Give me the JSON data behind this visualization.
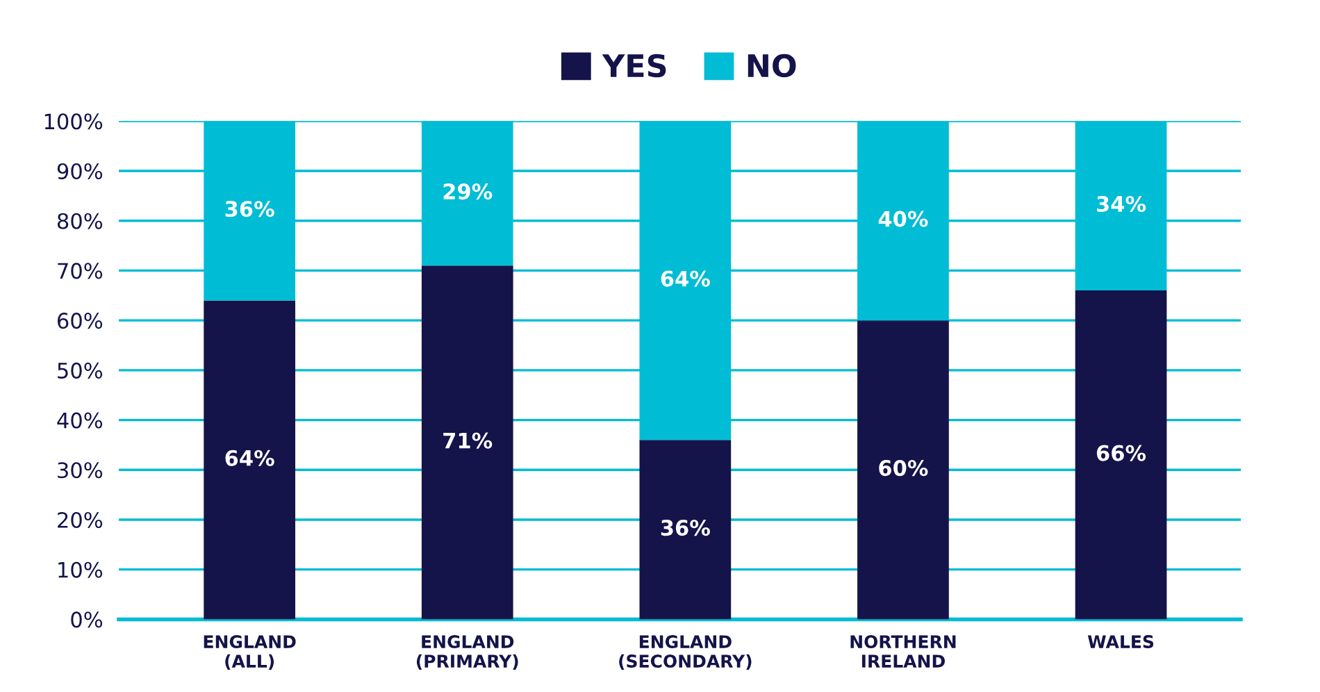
{
  "chart_data": {
    "type": "bar",
    "stacked": true,
    "categories": [
      "ENGLAND\n(ALL)",
      "ENGLAND\n(PRIMARY)",
      "ENGLAND\n(SECONDARY)",
      "NORTHERN\nIRELAND",
      "WALES"
    ],
    "series": [
      {
        "name": "YES",
        "color": "#14134a",
        "values": [
          64,
          71,
          36,
          60,
          66
        ],
        "value_labels": [
          "64%",
          "71%",
          "36%",
          "60%",
          "66%"
        ]
      },
      {
        "name": "NO",
        "color": "#00bcd4",
        "values": [
          36,
          29,
          64,
          40,
          34
        ],
        "value_labels": [
          "36%",
          "29%",
          "64%",
          "40%",
          "34%"
        ]
      }
    ],
    "ylim": [
      0,
      100
    ],
    "yticks": [
      {
        "value": 0,
        "label": "0%"
      },
      {
        "value": 10,
        "label": "10%"
      },
      {
        "value": 20,
        "label": "20%"
      },
      {
        "value": 30,
        "label": "30%"
      },
      {
        "value": 40,
        "label": "40%"
      },
      {
        "value": 50,
        "label": "50%"
      },
      {
        "value": 60,
        "label": "60%"
      },
      {
        "value": 70,
        "label": "70%"
      },
      {
        "value": 80,
        "label": "80%"
      },
      {
        "value": 90,
        "label": "90%"
      },
      {
        "value": 100,
        "label": "100%"
      }
    ],
    "grid": "y",
    "legend": "top"
  }
}
